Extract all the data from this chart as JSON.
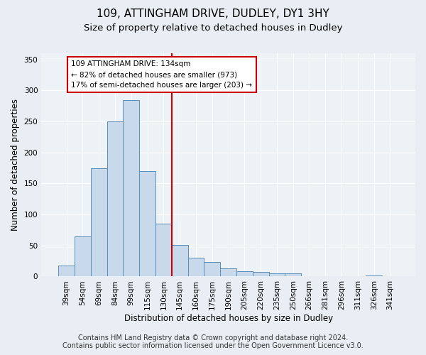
{
  "title1": "109, ATTINGHAM DRIVE, DUDLEY, DY1 3HY",
  "title2": "Size of property relative to detached houses in Dudley",
  "xlabel": "Distribution of detached houses by size in Dudley",
  "ylabel": "Number of detached properties",
  "footer1": "Contains HM Land Registry data © Crown copyright and database right 2024.",
  "footer2": "Contains public sector information licensed under the Open Government Licence v3.0.",
  "categories": [
    "39sqm",
    "54sqm",
    "69sqm",
    "84sqm",
    "99sqm",
    "115sqm",
    "130sqm",
    "145sqm",
    "160sqm",
    "175sqm",
    "190sqm",
    "205sqm",
    "220sqm",
    "235sqm",
    "250sqm",
    "266sqm",
    "281sqm",
    "296sqm",
    "311sqm",
    "326sqm",
    "341sqm"
  ],
  "values": [
    18,
    65,
    175,
    250,
    285,
    170,
    85,
    51,
    30,
    23,
    13,
    9,
    7,
    5,
    5,
    1,
    0,
    0,
    0,
    2,
    1
  ],
  "bar_color": "#c9d9ec",
  "bar_edge_color": "#5b8db8",
  "vline_x": 6.5,
  "vline_color": "#cc0000",
  "annotation_line1": "109 ATTINGHAM DRIVE: 134sqm",
  "annotation_line2": "← 82% of detached houses are smaller (973)",
  "annotation_line3": "17% of semi-detached houses are larger (203) →",
  "annotation_box_color": "#ffffff",
  "annotation_box_edge": "#cc0000",
  "ylim": [
    0,
    360
  ],
  "yticks": [
    0,
    50,
    100,
    150,
    200,
    250,
    300,
    350
  ],
  "bg_color": "#e8eef4",
  "plot_bg_color": "#edf2f7",
  "grid_color": "#ffffff",
  "title_fontsize": 11,
  "subtitle_fontsize": 9.5,
  "label_fontsize": 8.5,
  "tick_fontsize": 7.5,
  "footer_fontsize": 7
}
